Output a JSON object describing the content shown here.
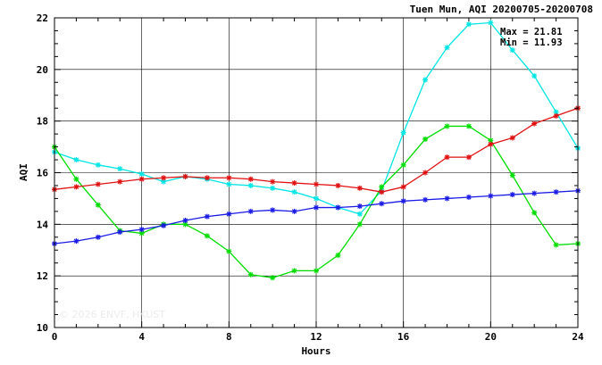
{
  "chart_data": {
    "type": "line",
    "title": "Tuen Mun, AQI 20200705-20200708",
    "xlabel": "Hours",
    "ylabel": "AQI",
    "xlim": [
      0,
      24
    ],
    "ylim": [
      10,
      22
    ],
    "x_ticks": [
      0,
      4,
      8,
      12,
      16,
      20,
      24
    ],
    "y_ticks": [
      10,
      12,
      14,
      16,
      18,
      20,
      22
    ],
    "x_tick_labels": [
      "0",
      "4",
      "8",
      "12",
      "16",
      "20",
      "24"
    ],
    "y_tick_labels": [
      "10",
      "12",
      "14",
      "16",
      "18",
      "20",
      "22"
    ],
    "grid": true,
    "stats": {
      "max_text": "Max = 21.81",
      "min_text": "Min = 11.93"
    },
    "watermark": "© 2026  ENVF, HKUST",
    "x": [
      0,
      1,
      2,
      3,
      4,
      5,
      6,
      7,
      8,
      9,
      10,
      11,
      12,
      13,
      14,
      15,
      16,
      17,
      18,
      19,
      20,
      21,
      22,
      23,
      24
    ],
    "series": [
      {
        "color": "#00e5e5",
        "values": [
          16.8,
          16.5,
          16.3,
          16.15,
          15.95,
          15.65,
          15.85,
          15.75,
          15.55,
          15.5,
          15.4,
          15.25,
          15.0,
          14.65,
          14.4,
          15.3,
          17.55,
          19.6,
          20.85,
          21.75,
          21.81,
          20.75,
          19.75,
          18.35,
          16.95
        ]
      },
      {
        "color": "#00dd00",
        "values": [
          17.0,
          15.75,
          14.75,
          13.75,
          13.65,
          14.0,
          14.0,
          13.55,
          12.95,
          12.05,
          11.93,
          12.2,
          12.2,
          12.8,
          14.0,
          15.45,
          16.3,
          17.3,
          17.8,
          17.8,
          17.25,
          15.9,
          14.45,
          13.2,
          13.25
        ]
      },
      {
        "color": "#e01010",
        "values": [
          15.35,
          15.45,
          15.55,
          15.65,
          15.75,
          15.8,
          15.85,
          15.8,
          15.8,
          15.75,
          15.65,
          15.6,
          15.55,
          15.5,
          15.4,
          15.25,
          15.45,
          16.0,
          16.6,
          16.6,
          17.1,
          17.35,
          17.9,
          18.2,
          18.5
        ]
      },
      {
        "color": "#1a1ae6",
        "values": [
          13.25,
          13.35,
          13.5,
          13.7,
          13.8,
          13.95,
          14.15,
          14.3,
          14.4,
          14.5,
          14.55,
          14.5,
          14.65,
          14.65,
          14.7,
          14.8,
          14.9,
          14.95,
          15.0,
          15.05,
          15.1,
          15.15,
          15.2,
          15.25,
          15.3
        ]
      }
    ]
  }
}
